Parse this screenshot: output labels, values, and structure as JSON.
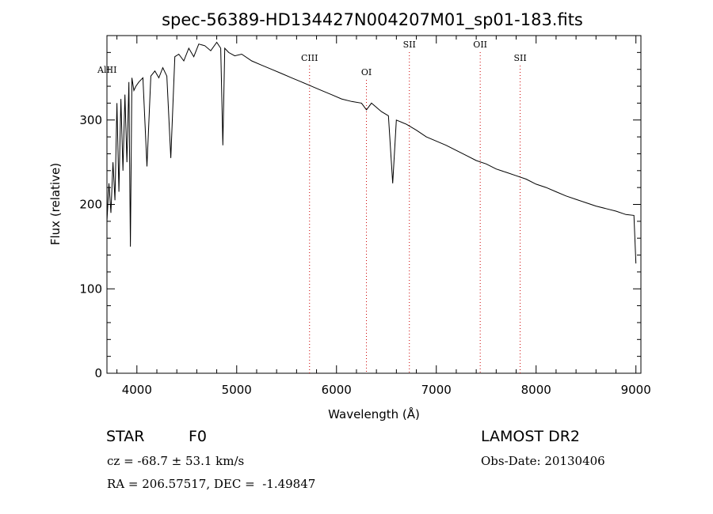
{
  "chart_data": {
    "type": "line",
    "title": "spec-56389-HD134427N004207M01_sp01-183.fits",
    "xlabel": "Wavelength (Å)",
    "ylabel": "Flux (relative)",
    "xlim": [
      3700,
      9050
    ],
    "ylim": [
      0,
      400
    ],
    "xticks": [
      4000,
      5000,
      6000,
      7000,
      8000,
      9000
    ],
    "yticks": [
      0,
      100,
      200,
      300
    ],
    "series": [
      {
        "color": "#000000",
        "x": [
          3700,
          3720,
          3740,
          3760,
          3780,
          3800,
          3820,
          3840,
          3860,
          3880,
          3900,
          3920,
          3935,
          3950,
          3970,
          3990,
          4020,
          4060,
          4101,
          4140,
          4180,
          4220,
          4260,
          4300,
          4340,
          4380,
          4420,
          4470,
          4520,
          4570,
          4620,
          4680,
          4740,
          4800,
          4840,
          4861,
          4880,
          4920,
          4980,
          5050,
          5150,
          5250,
          5350,
          5450,
          5550,
          5650,
          5750,
          5850,
          5950,
          6050,
          6150,
          6250,
          6300,
          6350,
          6450,
          6520,
          6563,
          6600,
          6700,
          6800,
          6900,
          7000,
          7100,
          7200,
          7300,
          7400,
          7500,
          7600,
          7700,
          7800,
          7900,
          8000,
          8100,
          8200,
          8300,
          8400,
          8500,
          8600,
          8700,
          8800,
          8900,
          8980,
          9000
        ],
        "y": [
          180,
          225,
          190,
          250,
          205,
          320,
          215,
          325,
          240,
          330,
          250,
          345,
          150,
          350,
          335,
          340,
          345,
          350,
          245,
          352,
          358,
          350,
          362,
          352,
          255,
          375,
          378,
          370,
          385,
          375,
          390,
          388,
          382,
          392,
          385,
          270,
          385,
          380,
          376,
          378,
          370,
          365,
          360,
          355,
          350,
          345,
          340,
          335,
          330,
          325,
          322,
          320,
          312,
          320,
          310,
          305,
          225,
          300,
          295,
          288,
          280,
          275,
          270,
          264,
          258,
          252,
          248,
          242,
          238,
          234,
          230,
          224,
          220,
          215,
          210,
          206,
          202,
          198,
          195,
          192,
          188,
          187,
          130
        ]
      }
    ],
    "line_markers": [
      {
        "label": "AlIII",
        "x": 3700,
        "dotted": false
      },
      {
        "label": "CIII",
        "x": 5730,
        "dotted": true
      },
      {
        "label": "OI",
        "x": 6300,
        "dotted": true
      },
      {
        "label": "SII",
        "x": 6730,
        "dotted": true
      },
      {
        "label": "OII",
        "x": 7440,
        "dotted": true
      },
      {
        "label": "SII",
        "x": 7840,
        "dotted": true
      }
    ],
    "marker_color": "#cc0000",
    "grid": false
  },
  "info": {
    "object_class": "STAR",
    "subclass": "F0",
    "survey": "LAMOST DR2",
    "cz": "cz = -68.7 ± 53.1 km/s",
    "obs_date": "Obs-Date: 20130406",
    "coords": "RA = 206.57517, DEC =  -1.49847"
  }
}
